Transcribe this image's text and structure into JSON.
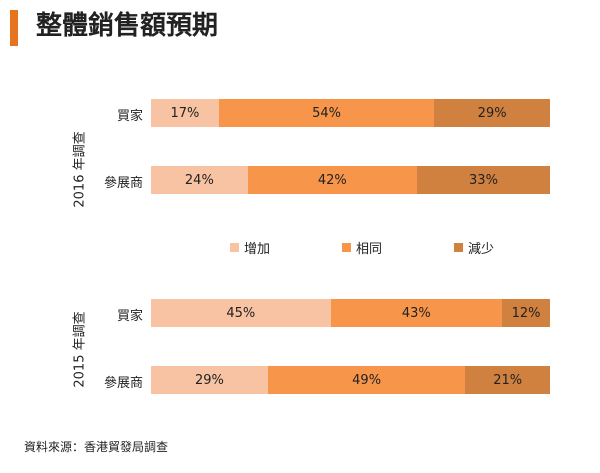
{
  "title": "整體銷售額預期",
  "source": "資料來源：香港貿發局調查",
  "colors": {
    "accent": "#E8731F",
    "increase": "#F8C3A3",
    "same": "#F7964A",
    "decrease": "#D0803F"
  },
  "chart_data": {
    "type": "bar",
    "orientation": "horizontal-stacked-percent",
    "title": "整體銷售額預期",
    "legend": [
      "增加",
      "相同",
      "減少"
    ],
    "legend_position": "middle",
    "groups": [
      {
        "label": "2016 年調查",
        "categories": [
          "買家",
          "參展商"
        ],
        "series": [
          {
            "name": "增加",
            "values": [
              17,
              24
            ]
          },
          {
            "name": "相同",
            "values": [
              54,
              42
            ]
          },
          {
            "name": "減少",
            "values": [
              29,
              33
            ]
          }
        ],
        "labels": [
          [
            "17%",
            "54%",
            "29%"
          ],
          [
            "24%",
            "42%",
            "33%"
          ]
        ]
      },
      {
        "label": "2015 年調查",
        "categories": [
          "買家",
          "參展商"
        ],
        "series": [
          {
            "name": "增加",
            "values": [
              45,
              29
            ]
          },
          {
            "name": "相同",
            "values": [
              43,
              49
            ]
          },
          {
            "name": "減少",
            "values": [
              12,
              21
            ]
          }
        ],
        "labels": [
          [
            "45%",
            "43%",
            "12%"
          ],
          [
            "29%",
            "49%",
            "21%"
          ]
        ]
      }
    ]
  }
}
